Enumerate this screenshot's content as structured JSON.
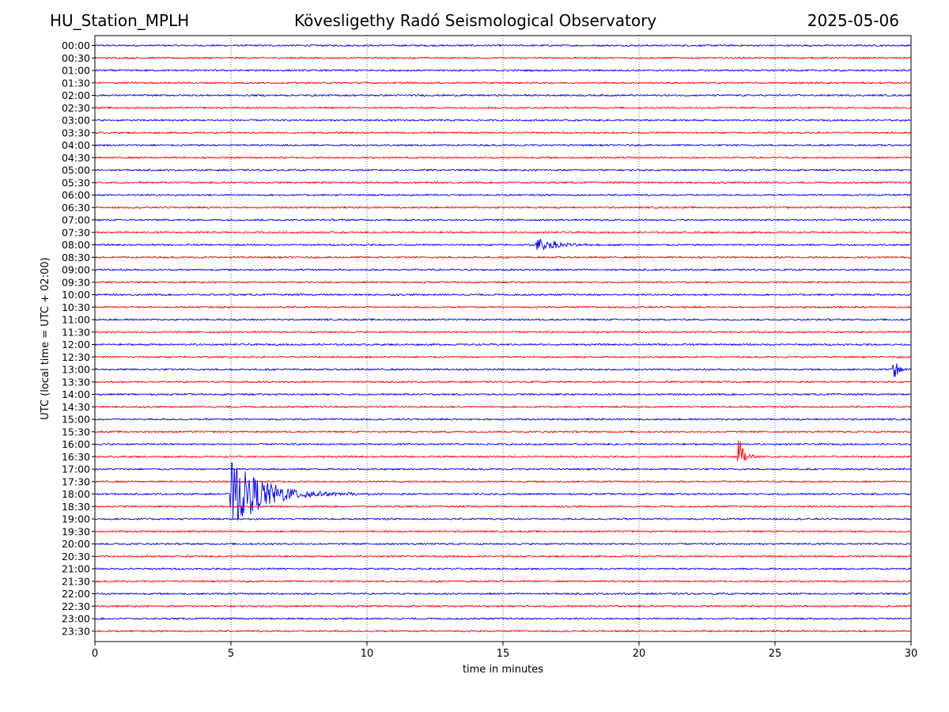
{
  "header": {
    "station": "HU_Station_MPLH",
    "observatory": "Kövesligethy Radó Seismological Observatory",
    "date": "2025-05-06"
  },
  "chart_data": {
    "type": "line",
    "subtype": "helicorder",
    "xlabel": "time in minutes",
    "ylabel": "UTC (local time = UTC + 02:00)",
    "xlim": [
      0,
      30
    ],
    "xticks": [
      0,
      5,
      10,
      15,
      20,
      25,
      30
    ],
    "vertical_gridlines_at": [
      5,
      10,
      15,
      20,
      25
    ],
    "row_labels": [
      "00:00",
      "00:30",
      "01:00",
      "01:30",
      "02:00",
      "02:30",
      "03:00",
      "03:30",
      "04:00",
      "04:30",
      "05:00",
      "05:30",
      "06:00",
      "06:30",
      "07:00",
      "07:30",
      "08:00",
      "08:30",
      "09:00",
      "09:30",
      "10:00",
      "10:30",
      "11:00",
      "11:30",
      "12:00",
      "12:30",
      "13:00",
      "13:30",
      "14:00",
      "14:30",
      "15:00",
      "15:30",
      "16:00",
      "16:30",
      "17:00",
      "17:30",
      "18:00",
      "18:30",
      "19:00",
      "19:30",
      "20:00",
      "20:30",
      "21:00",
      "21:30",
      "22:00",
      "22:30",
      "23:00",
      "23:30"
    ],
    "trace_colors": [
      "#0000ff",
      "#ff0000"
    ],
    "events": [
      {
        "row": "08:00",
        "start_min": 16.2,
        "duration_min": 3.2,
        "amplitude": 0.6
      },
      {
        "row": "13:00",
        "start_min": 29.3,
        "duration_min": 0.7,
        "amplitude": 1.4
      },
      {
        "row": "16:30",
        "start_min": 23.6,
        "duration_min": 0.8,
        "amplitude": 2.3
      },
      {
        "row": "18:00",
        "start_min": 4.95,
        "duration_min": 5.2,
        "amplitude": 2.8
      }
    ]
  }
}
